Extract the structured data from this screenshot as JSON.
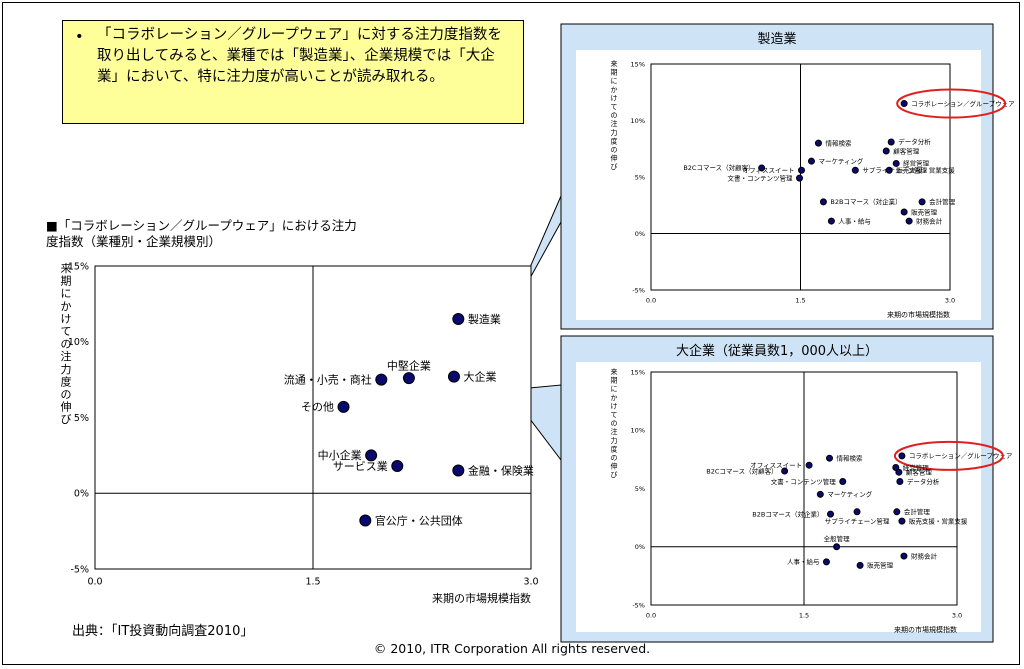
{
  "callout": {
    "bullet": "•",
    "text": "「コラボレーション／グループウェア」に対する注力度指数を取り出してみると、業種では「製造業」、企業規模では「大企業」において、特に注力度が高いことが読み取れる。"
  },
  "main_title": "■「コラボレーション／グループウェア」における注力度指数（業種別・企業規模別）",
  "source": "出典：「IT投資動向調査2010」",
  "copyright": "© 2010, ITR Corporation  All rights reserved.",
  "colors": {
    "callout_bg": "#ffff99",
    "panel_bg": "#cfe3f6",
    "point": "#0a0a6e",
    "highlight": "#e02020"
  },
  "chart_data": [
    {
      "type": "scatter",
      "title": "",
      "xlabel": "来期の市場規模指数",
      "ylabel": "来期にかけての注力度の伸び",
      "xlim": [
        0,
        3.0
      ],
      "ylim": [
        -5,
        15
      ],
      "x_ticks": [
        "0.0",
        "1.5",
        "3.0"
      ],
      "y_ticks": [
        "15%",
        "10%",
        "5%",
        "0%",
        "-5%"
      ],
      "crosshair": {
        "x": 1.5,
        "y": 0
      },
      "points": [
        {
          "label": "製造業",
          "x": 2.5,
          "y": 11.5,
          "side": "right"
        },
        {
          "label": "大企業",
          "x": 2.47,
          "y": 7.7,
          "side": "right"
        },
        {
          "label": "中堅企業",
          "x": 2.16,
          "y": 7.6,
          "side": "above"
        },
        {
          "label": "流通・小売・商社",
          "x": 1.97,
          "y": 7.5,
          "side": "left"
        },
        {
          "label": "その他",
          "x": 1.71,
          "y": 5.7,
          "side": "left"
        },
        {
          "label": "中小企業",
          "x": 1.9,
          "y": 2.5,
          "side": "left"
        },
        {
          "label": "サービス業",
          "x": 2.08,
          "y": 1.8,
          "side": "left"
        },
        {
          "label": "金融・保険業",
          "x": 2.5,
          "y": 1.5,
          "side": "right"
        },
        {
          "label": "官公庁・公共団体",
          "x": 1.86,
          "y": -1.8,
          "side": "right"
        }
      ]
    },
    {
      "type": "scatter",
      "title": "製造業",
      "xlabel": "来期の市場規模指数",
      "ylabel": "来期にかけての注力度の伸び",
      "xlim": [
        0,
        3.0
      ],
      "ylim": [
        -5,
        15
      ],
      "x_ticks": [
        "0.0",
        "1.5",
        "3.0"
      ],
      "y_ticks": [
        "15%",
        "10%",
        "5%",
        "0%",
        "-5%"
      ],
      "crosshair": {
        "x": 1.5,
        "y": 0
      },
      "highlight": "コラボレーション／グループウェア",
      "points": [
        {
          "label": "コラボレーション／グループウェア",
          "x": 2.54,
          "y": 11.5,
          "side": "right"
        },
        {
          "label": "データ分析",
          "x": 2.41,
          "y": 8.1,
          "side": "right"
        },
        {
          "label": "情報検索",
          "x": 1.68,
          "y": 8.0,
          "side": "right"
        },
        {
          "label": "顧客管理",
          "x": 2.36,
          "y": 7.3,
          "side": "right"
        },
        {
          "label": "経営管理",
          "x": 2.46,
          "y": 6.2,
          "side": "right"
        },
        {
          "label": "マーケティング",
          "x": 1.61,
          "y": 6.4,
          "side": "right"
        },
        {
          "label": "B2Cコマース（対顧客）",
          "x": 1.11,
          "y": 5.8,
          "side": "left"
        },
        {
          "label": "オフィススイート",
          "x": 1.51,
          "y": 5.6,
          "side": "left"
        },
        {
          "label": "販売支援・営業支援",
          "x": 2.39,
          "y": 5.6,
          "side": "right"
        },
        {
          "label": "サプライチェーン管理",
          "x": 2.05,
          "y": 5.6,
          "side": "right"
        },
        {
          "label": "文書・コンテンツ管理",
          "x": 1.49,
          "y": 4.9,
          "side": "left"
        },
        {
          "label": "B2Bコマース（対企業）",
          "x": 1.73,
          "y": 2.8,
          "side": "right"
        },
        {
          "label": "会計管理",
          "x": 2.72,
          "y": 2.8,
          "side": "right"
        },
        {
          "label": "販売管理",
          "x": 2.54,
          "y": 1.9,
          "side": "right"
        },
        {
          "label": "人事・給与",
          "x": 1.81,
          "y": 1.1,
          "side": "right"
        },
        {
          "label": "財務会計",
          "x": 2.59,
          "y": 1.1,
          "side": "right"
        }
      ]
    },
    {
      "type": "scatter",
      "title": "大企業（従業員数1，000人以上）",
      "xlabel": "来期の市場規模指数",
      "ylabel": "来期にかけての注力度の伸び",
      "xlim": [
        0,
        3.0
      ],
      "ylim": [
        -5,
        15
      ],
      "x_ticks": [
        "0.0",
        "1.5",
        "3.0"
      ],
      "y_ticks": [
        "15%",
        "10%",
        "5%",
        "0%",
        "-5%"
      ],
      "crosshair": {
        "x": 1.5,
        "y": 0
      },
      "highlight": "コラボレーション／グループウェア",
      "points": [
        {
          "label": "コラボレーション／グループウェア",
          "x": 2.46,
          "y": 7.8,
          "side": "right"
        },
        {
          "label": "情報検索",
          "x": 1.75,
          "y": 7.6,
          "side": "right"
        },
        {
          "label": "経営管理",
          "x": 2.4,
          "y": 6.8,
          "side": "right"
        },
        {
          "label": "オフィススイート",
          "x": 1.55,
          "y": 7.0,
          "side": "left"
        },
        {
          "label": "顧客管理",
          "x": 2.43,
          "y": 6.4,
          "side": "right"
        },
        {
          "label": "B2Cコマース（対顧客）",
          "x": 1.31,
          "y": 6.5,
          "side": "left"
        },
        {
          "label": "文書・コンテンツ管理",
          "x": 1.88,
          "y": 5.6,
          "side": "left"
        },
        {
          "label": "データ分析",
          "x": 2.44,
          "y": 5.6,
          "side": "right"
        },
        {
          "label": "マーケティング",
          "x": 1.66,
          "y": 4.5,
          "side": "right"
        },
        {
          "label": "B2Bコマース（対企業）",
          "x": 1.76,
          "y": 2.8,
          "side": "left"
        },
        {
          "label": "サプライチェーン管理",
          "x": 2.02,
          "y": 3.0,
          "side": "below"
        },
        {
          "label": "会計管理",
          "x": 2.41,
          "y": 3.0,
          "side": "right"
        },
        {
          "label": "販売支援・営業支援",
          "x": 2.46,
          "y": 2.2,
          "side": "right"
        },
        {
          "label": "全般管理",
          "x": 1.82,
          "y": 0.0,
          "side": "above"
        },
        {
          "label": "財務会計",
          "x": 2.48,
          "y": -0.8,
          "side": "right"
        },
        {
          "label": "人事・給与",
          "x": 1.72,
          "y": -1.3,
          "side": "left"
        },
        {
          "label": "販売管理",
          "x": 2.05,
          "y": -1.6,
          "side": "right"
        }
      ]
    }
  ]
}
